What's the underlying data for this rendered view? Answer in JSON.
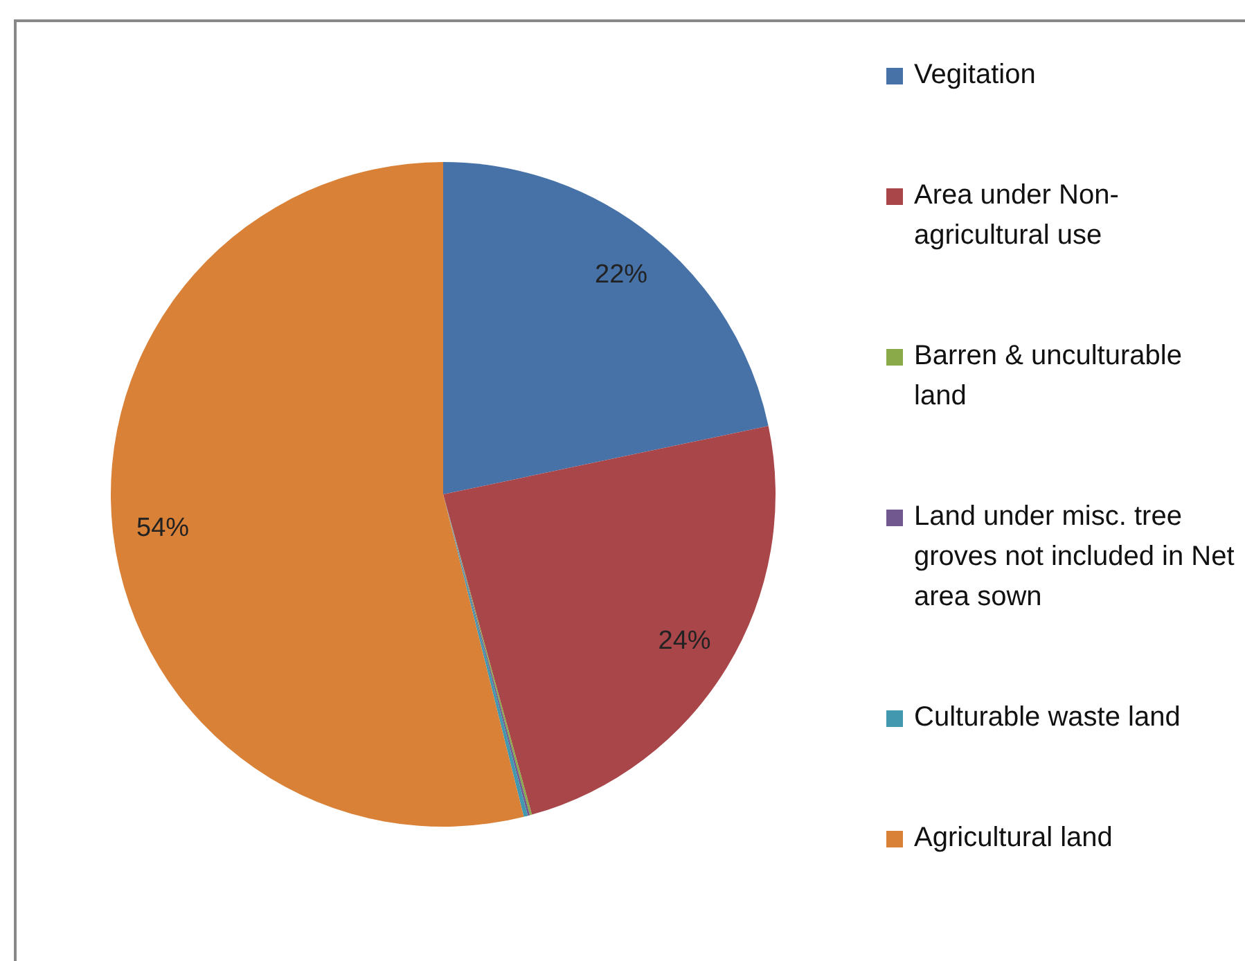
{
  "chart_data": {
    "type": "pie",
    "categories": [
      "Vegitation",
      "Area under Non-agricultural use",
      "Barren & unculturable land",
      "Land under misc. tree groves not included in Net area sown",
      "Culturable waste land",
      "Agricultural land"
    ],
    "values": [
      21.7,
      24.0,
      0.1,
      0.1,
      0.2,
      53.9
    ],
    "value_labels": [
      "22%",
      "24%",
      null,
      null,
      null,
      "54%"
    ],
    "colors": [
      "#4672a8",
      "#a9464a",
      "#8aaa4a",
      "#71588f",
      "#4298ae",
      "#da8138"
    ],
    "legend": "right"
  }
}
